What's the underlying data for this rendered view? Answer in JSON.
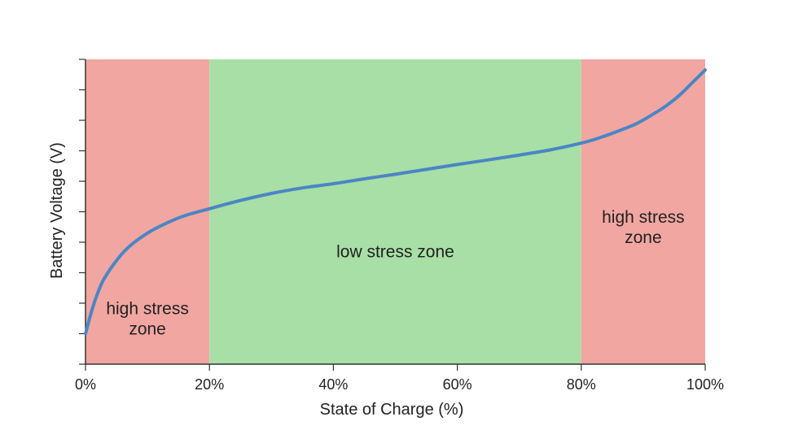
{
  "chart_data": {
    "type": "line",
    "title": "",
    "xlabel": "State of Charge (%)",
    "ylabel": "Battery Voltage (V)",
    "xlim": [
      0,
      100
    ],
    "ylim": [
      0,
      10
    ],
    "x_ticks": [
      0,
      20,
      40,
      60,
      80,
      100
    ],
    "x_tick_labels": [
      "0%",
      "20%",
      "40%",
      "60%",
      "80%",
      "100%"
    ],
    "y_ticks": [
      0,
      1,
      2,
      3,
      4,
      5,
      6,
      7,
      8,
      9,
      10
    ],
    "y_tick_labels_shown": false,
    "grid": false,
    "legend": "none",
    "zones": [
      {
        "from": 0,
        "to": 20,
        "label_lines": [
          "high stress",
          "zone"
        ],
        "color": "#f2a6a1",
        "label_y": 1.5
      },
      {
        "from": 20,
        "to": 80,
        "label_lines": [
          "low stress zone"
        ],
        "color": "#a8dfa6",
        "label_y": 3.7
      },
      {
        "from": 80,
        "to": 100,
        "label_lines": [
          "high stress",
          "zone"
        ],
        "color": "#f2a6a1",
        "label_y": 4.5
      }
    ],
    "series": [
      {
        "color": "#4a86c5",
        "x": [
          0,
          1,
          2,
          3,
          5,
          7,
          10,
          13,
          16,
          20,
          25,
          30,
          35,
          40,
          45,
          50,
          55,
          60,
          65,
          70,
          75,
          80,
          83,
          86,
          89,
          92,
          94,
          96,
          98,
          100
        ],
        "y": [
          1.0,
          1.75,
          2.35,
          2.8,
          3.4,
          3.85,
          4.3,
          4.62,
          4.87,
          5.1,
          5.37,
          5.6,
          5.78,
          5.92,
          6.08,
          6.23,
          6.39,
          6.55,
          6.7,
          6.86,
          7.03,
          7.25,
          7.43,
          7.65,
          7.9,
          8.25,
          8.52,
          8.85,
          9.25,
          9.65
        ]
      }
    ]
  }
}
